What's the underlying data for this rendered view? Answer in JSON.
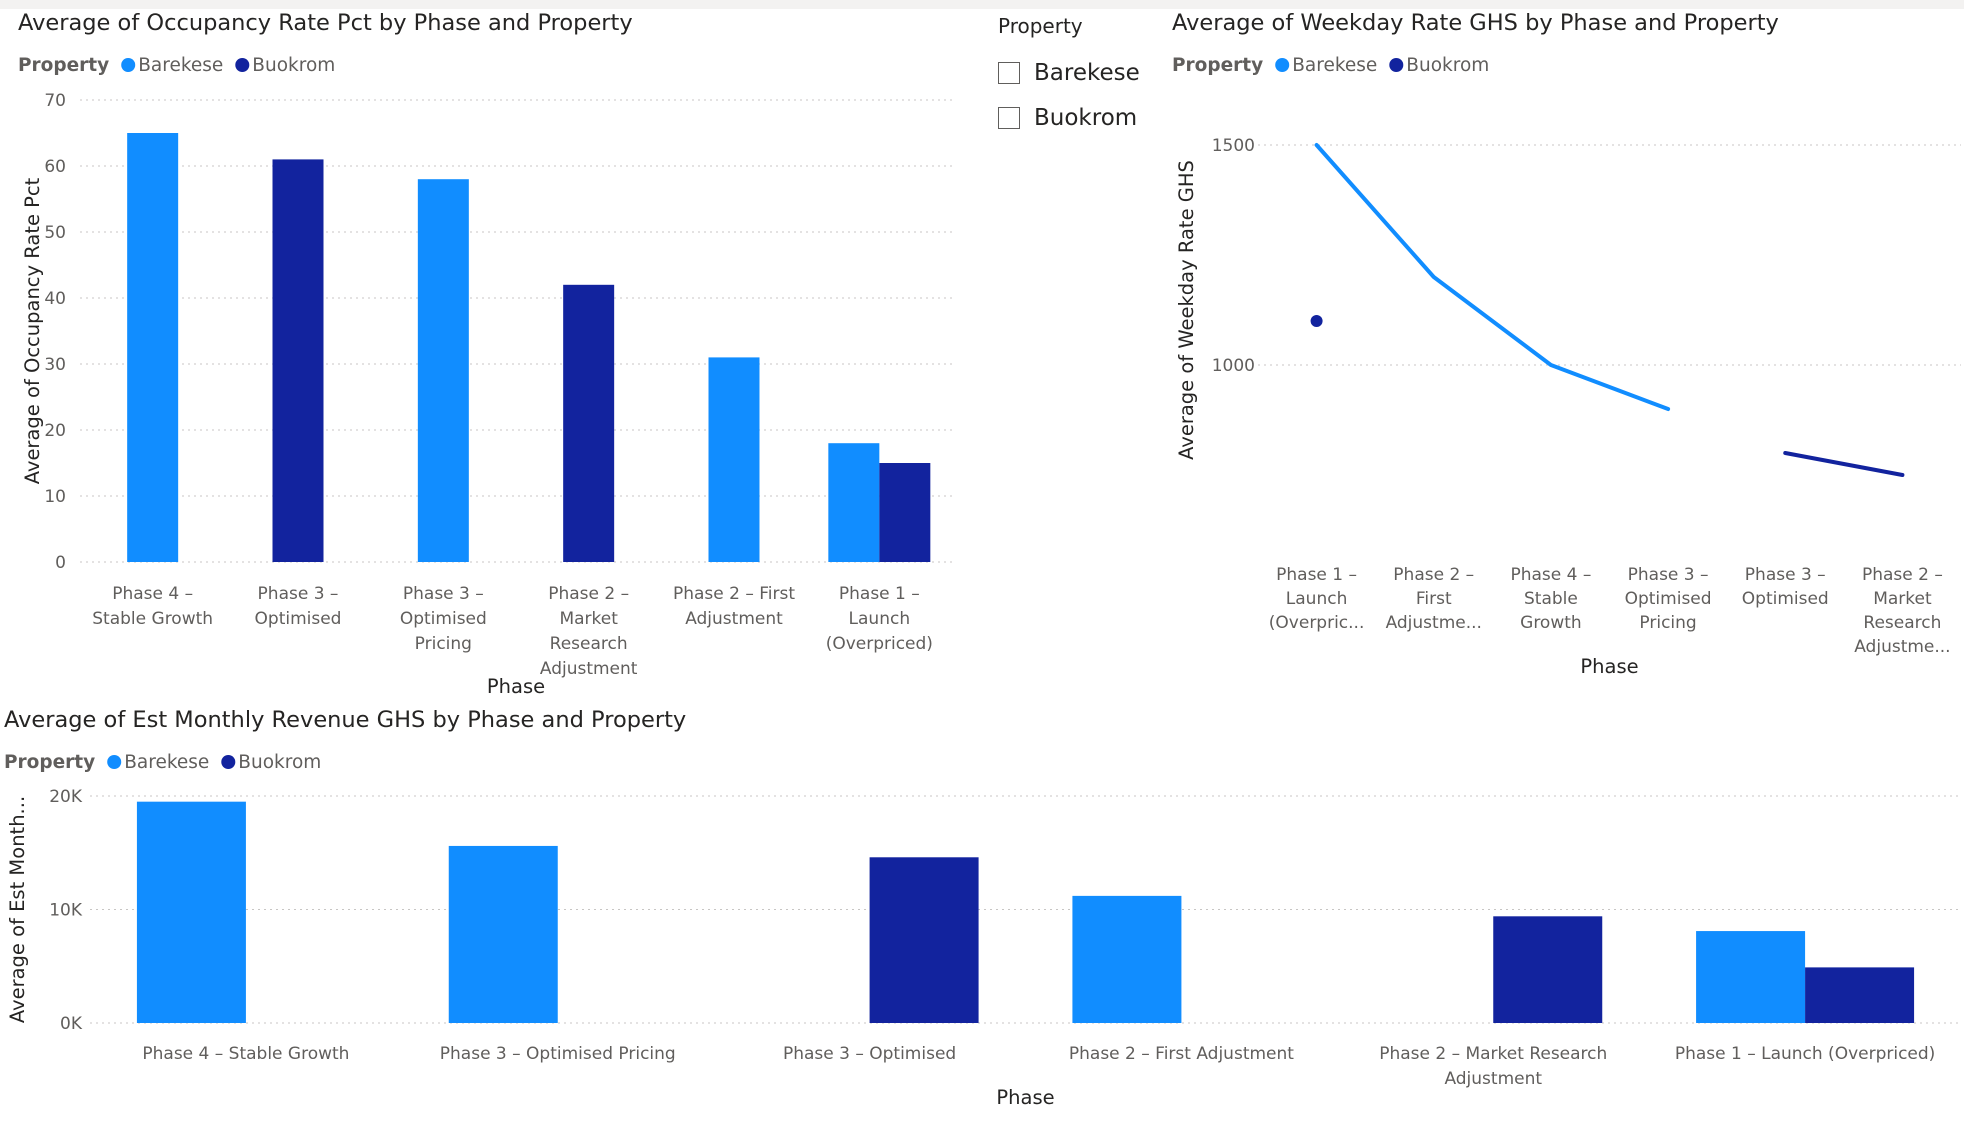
{
  "colors": {
    "barekese": "#118dff",
    "buokrom": "#12239e"
  },
  "slicer": {
    "title": "Property",
    "items": [
      "Barekese",
      "Buokrom"
    ]
  },
  "chart_data": [
    {
      "id": "occupancy",
      "type": "bar",
      "title": "Average of Occupancy Rate Pct by Phase and Property",
      "legend_title": "Property",
      "xlabel": "Phase",
      "ylabel": "Average of Occupancy Rate Pct",
      "ylim": [
        0,
        70
      ],
      "yticks": [
        0,
        10,
        20,
        30,
        40,
        50,
        60,
        70
      ],
      "ytick_labels": [
        "0",
        "10",
        "20",
        "30",
        "40",
        "50",
        "60",
        "70"
      ],
      "grid": true,
      "legend_position": "top-left",
      "categories": [
        "Phase 4 – Stable Growth",
        "Phase 3 – Optimised",
        "Phase 3 – Optimised Pricing",
        "Phase 2 – Market Research Adjustment",
        "Phase 2 – First Adjustment",
        "Phase 1 – Launch (Overpriced)"
      ],
      "category_lines": [
        [
          "Phase 4 –",
          "Stable Growth"
        ],
        [
          "Phase 3 –",
          "Optimised"
        ],
        [
          "Phase 3 –",
          "Optimised",
          "Pricing"
        ],
        [
          "Phase 2 –",
          "Market",
          "Research",
          "Adjustment"
        ],
        [
          "Phase 2 – First",
          "Adjustment"
        ],
        [
          "Phase 1 –",
          "Launch",
          "(Overpriced)"
        ]
      ],
      "series": [
        {
          "name": "Barekese",
          "values": [
            65,
            null,
            58,
            null,
            31,
            18
          ]
        },
        {
          "name": "Buokrom",
          "values": [
            null,
            61,
            null,
            42,
            null,
            15
          ]
        }
      ]
    },
    {
      "id": "weekday",
      "type": "line",
      "title": "Average of Weekday Rate GHS by Phase and Property",
      "legend_title": "Property",
      "xlabel": "Phase",
      "ylabel": "Average of Weekday Rate GHS",
      "ylim": [
        750,
        1500
      ],
      "yticks": [
        1000,
        1500
      ],
      "ytick_labels": [
        "1000",
        "1500"
      ],
      "grid": true,
      "legend_position": "top-left",
      "categories": [
        "Phase 1 – Launch (Overpriced)",
        "Phase 2 – First Adjustment",
        "Phase 4 – Stable Growth",
        "Phase 3 – Optimised Pricing",
        "Phase 3 – Optimised",
        "Phase 2 – Market Research Adjustment"
      ],
      "category_lines": [
        [
          "Phase 1 –",
          "Launch",
          "(Overpric..."
        ],
        [
          "Phase 2 –",
          "First",
          "Adjustme..."
        ],
        [
          "Phase 4 –",
          "Stable",
          "Growth"
        ],
        [
          "Phase 3 –",
          "Optimised",
          "Pricing"
        ],
        [
          "Phase 3 –",
          "Optimised"
        ],
        [
          "Phase 2 –",
          "Market",
          "Research",
          "Adjustme..."
        ]
      ],
      "series": [
        {
          "name": "Barekese",
          "values": [
            1500,
            1200,
            1000,
            900,
            null,
            null
          ]
        },
        {
          "name": "Buokrom",
          "values": [
            1100,
            null,
            null,
            null,
            800,
            750
          ]
        }
      ]
    },
    {
      "id": "revenue",
      "type": "bar",
      "title": "Average of Est Monthly Revenue GHS by Phase and Property",
      "legend_title": "Property",
      "xlabel": "Phase",
      "ylabel": "Average of Est Month...",
      "ylim": [
        0,
        20000
      ],
      "yticks": [
        0,
        10000,
        20000
      ],
      "ytick_labels": [
        "0K",
        "10K",
        "20K"
      ],
      "grid": true,
      "legend_position": "top-left",
      "categories": [
        "Phase 4 – Stable Growth",
        "Phase 3 – Optimised Pricing",
        "Phase 3 – Optimised",
        "Phase 2 – First Adjustment",
        "Phase 2 – Market Research Adjustment",
        "Phase 1 – Launch (Overpriced)"
      ],
      "category_lines": [
        [
          "Phase 4 – Stable Growth"
        ],
        [
          "Phase 3 – Optimised Pricing"
        ],
        [
          "Phase 3 – Optimised"
        ],
        [
          "Phase 2 – First Adjustment"
        ],
        [
          "Phase 2 – Market Research",
          "Adjustment"
        ],
        [
          "Phase 1 – Launch (Overpriced)"
        ]
      ],
      "series": [
        {
          "name": "Barekese",
          "values": [
            19500,
            15600,
            null,
            11200,
            null,
            8100
          ]
        },
        {
          "name": "Buokrom",
          "values": [
            null,
            null,
            14600,
            null,
            9400,
            4900
          ]
        }
      ]
    }
  ]
}
